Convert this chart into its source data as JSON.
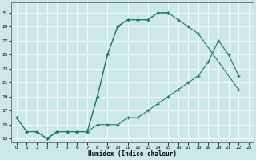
{
  "xlabel": "Humidex (Indice chaleur)",
  "background_color": "#cce8e8",
  "grid_color": "#ffffff",
  "line_color": "#1a7a6e",
  "xlim": [
    -0.5,
    23.5
  ],
  "ylim": [
    12.5,
    32.5
  ],
  "xticks": [
    0,
    1,
    2,
    3,
    4,
    5,
    6,
    7,
    8,
    9,
    10,
    11,
    12,
    13,
    14,
    15,
    16,
    17,
    18,
    19,
    20,
    21,
    22,
    23
  ],
  "yticks": [
    13,
    15,
    17,
    19,
    21,
    23,
    25,
    27,
    29,
    31
  ],
  "line1_x": [
    0,
    1,
    2,
    3,
    4,
    5,
    6,
    7,
    8,
    9,
    10,
    11,
    12,
    13,
    14,
    15
  ],
  "line1_y": [
    16,
    14,
    14,
    13,
    14,
    14,
    14,
    14,
    19,
    25,
    29,
    30,
    30,
    30,
    31,
    31
  ],
  "line2_x": [
    0,
    1,
    2,
    3,
    4,
    5,
    6,
    7,
    8,
    9,
    10,
    11,
    12,
    13,
    14,
    15,
    16,
    17,
    18,
    22
  ],
  "line2_y": [
    16,
    14,
    14,
    13,
    14,
    14,
    14,
    14,
    19,
    25,
    29,
    30,
    30,
    30,
    31,
    31,
    30,
    29,
    28,
    20
  ],
  "line3_x": [
    3,
    4,
    5,
    6,
    7,
    8,
    9,
    10,
    11,
    12,
    13,
    14,
    15,
    16,
    17,
    18,
    19,
    20,
    21,
    22
  ],
  "line3_y": [
    13,
    14,
    14,
    14,
    14,
    15,
    15,
    15,
    16,
    16,
    17,
    18,
    19,
    20,
    21,
    22,
    24,
    27,
    25,
    22
  ]
}
